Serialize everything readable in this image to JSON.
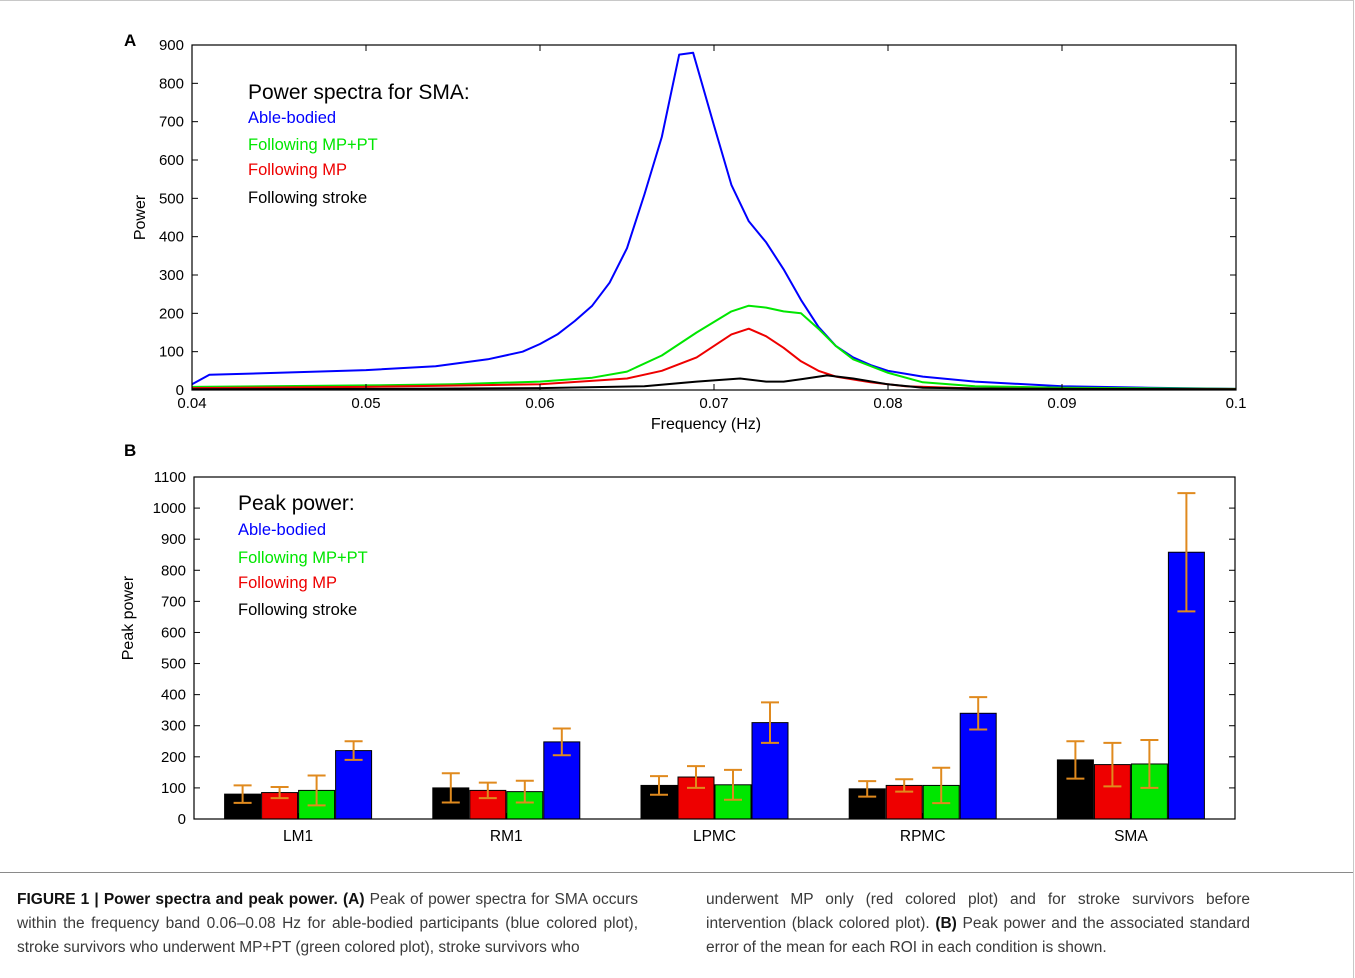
{
  "figure": {
    "panel_a_letter": "A",
    "panel_b_letter": "B"
  },
  "chart_data": [
    {
      "type": "line",
      "panel": "A",
      "title": "",
      "xlabel": "Frequency (Hz)",
      "ylabel": "Power",
      "xlim": [
        0.04,
        0.1
      ],
      "ylim": [
        0,
        900
      ],
      "xticks": [
        "0.04",
        "0.05",
        "0.06",
        "0.07",
        "0.08",
        "0.09",
        "0.1"
      ],
      "yticks": [
        "0",
        "100",
        "200",
        "300",
        "400",
        "500",
        "600",
        "700",
        "800",
        "900"
      ],
      "grid": false,
      "legend_title": "Power spectra for SMA:",
      "legend_placement": "top-left",
      "series": [
        {
          "name": "Able-bodied",
          "color": "#0000ff",
          "points": [
            [
              0.04,
              15
            ],
            [
              0.041,
              40
            ],
            [
              0.045,
              45
            ],
            [
              0.05,
              52
            ],
            [
              0.054,
              62
            ],
            [
              0.057,
              80
            ],
            [
              0.059,
              100
            ],
            [
              0.06,
              120
            ],
            [
              0.061,
              145
            ],
            [
              0.062,
              180
            ],
            [
              0.063,
              220
            ],
            [
              0.064,
              280
            ],
            [
              0.065,
              370
            ],
            [
              0.066,
              510
            ],
            [
              0.067,
              660
            ],
            [
              0.068,
              875
            ],
            [
              0.0688,
              880
            ],
            [
              0.07,
              690
            ],
            [
              0.071,
              535
            ],
            [
              0.072,
              440
            ],
            [
              0.073,
              385
            ],
            [
              0.074,
              315
            ],
            [
              0.075,
              235
            ],
            [
              0.076,
              165
            ],
            [
              0.077,
              115
            ],
            [
              0.078,
              85
            ],
            [
              0.079,
              65
            ],
            [
              0.08,
              50
            ],
            [
              0.082,
              35
            ],
            [
              0.085,
              22
            ],
            [
              0.09,
              10
            ],
            [
              0.095,
              6
            ],
            [
              0.1,
              3
            ]
          ]
        },
        {
          "name": "Following MP+PT",
          "color": "#00e600",
          "points": [
            [
              0.04,
              8
            ],
            [
              0.05,
              12
            ],
            [
              0.055,
              15
            ],
            [
              0.06,
              22
            ],
            [
              0.063,
              32
            ],
            [
              0.065,
              48
            ],
            [
              0.067,
              90
            ],
            [
              0.069,
              150
            ],
            [
              0.071,
              205
            ],
            [
              0.072,
              220
            ],
            [
              0.073,
              215
            ],
            [
              0.074,
              205
            ],
            [
              0.075,
              200
            ],
            [
              0.076,
              160
            ],
            [
              0.077,
              115
            ],
            [
              0.078,
              80
            ],
            [
              0.08,
              45
            ],
            [
              0.082,
              20
            ],
            [
              0.085,
              10
            ],
            [
              0.09,
              6
            ],
            [
              0.1,
              3
            ]
          ]
        },
        {
          "name": "Following MP",
          "color": "#ee0000",
          "points": [
            [
              0.04,
              5
            ],
            [
              0.05,
              8
            ],
            [
              0.06,
              15
            ],
            [
              0.065,
              30
            ],
            [
              0.067,
              50
            ],
            [
              0.069,
              85
            ],
            [
              0.071,
              145
            ],
            [
              0.072,
              160
            ],
            [
              0.073,
              140
            ],
            [
              0.074,
              110
            ],
            [
              0.075,
              75
            ],
            [
              0.076,
              50
            ],
            [
              0.077,
              35
            ],
            [
              0.079,
              20
            ],
            [
              0.081,
              10
            ],
            [
              0.085,
              4
            ],
            [
              0.09,
              3
            ],
            [
              0.1,
              2
            ]
          ]
        },
        {
          "name": "Following stroke",
          "color": "#000000",
          "points": [
            [
              0.04,
              2
            ],
            [
              0.05,
              3
            ],
            [
              0.06,
              5
            ],
            [
              0.066,
              10
            ],
            [
              0.069,
              22
            ],
            [
              0.0715,
              30
            ],
            [
              0.073,
              22
            ],
            [
              0.074,
              22
            ],
            [
              0.075,
              28
            ],
            [
              0.0765,
              38
            ],
            [
              0.078,
              30
            ],
            [
              0.08,
              15
            ],
            [
              0.082,
              6
            ],
            [
              0.085,
              4
            ],
            [
              0.09,
              3
            ],
            [
              0.1,
              2
            ]
          ]
        }
      ]
    },
    {
      "type": "bar",
      "panel": "B",
      "title": "",
      "xlabel": "",
      "ylabel": "Peak power",
      "ylim": [
        0,
        1100
      ],
      "yticks": [
        "0",
        "100",
        "200",
        "300",
        "400",
        "500",
        "600",
        "700",
        "800",
        "900",
        "1000",
        "1100"
      ],
      "grid": false,
      "legend_title": "Peak power:",
      "legend_placement": "top-left",
      "error_bar_color": "#e08a1e",
      "categories": [
        "LM1",
        "RM1",
        "LPMC",
        "RPMC",
        "SMA"
      ],
      "series": [
        {
          "name": "Following stroke",
          "color": "#000000",
          "values": [
            80,
            100,
            108,
            97,
            190
          ],
          "errors": [
            28,
            47,
            30,
            25,
            60
          ]
        },
        {
          "name": "Following MP",
          "color": "#ee0000",
          "values": [
            85,
            92,
            135,
            108,
            175
          ],
          "errors": [
            18,
            25,
            35,
            20,
            70
          ]
        },
        {
          "name": "Following MP+PT",
          "color": "#00e600",
          "values": [
            92,
            88,
            110,
            108,
            177
          ],
          "errors": [
            48,
            35,
            48,
            57,
            77
          ]
        },
        {
          "name": "Able-bodied",
          "color": "#0000ff",
          "values": [
            220,
            248,
            310,
            340,
            858
          ],
          "errors": [
            30,
            43,
            65,
            52,
            190
          ]
        }
      ]
    }
  ],
  "caption": {
    "label": "FIGURE 1 | Power spectra and peak power.",
    "part_a_marker": "(A)",
    "part_a_text": "Peak of power spectra for SMA occurs within the frequency band 0.06–0.08 Hz for able-bodied participants (blue colored plot), stroke survivors who underwent MP+PT (green colored plot), stroke survivors who underwent MP only (red colored plot) and for stroke survivors before intervention (black colored plot).",
    "part_b_marker": "(B)",
    "part_b_text": "Peak power and the associated standard error of the mean for each ROI in each condition is shown."
  }
}
